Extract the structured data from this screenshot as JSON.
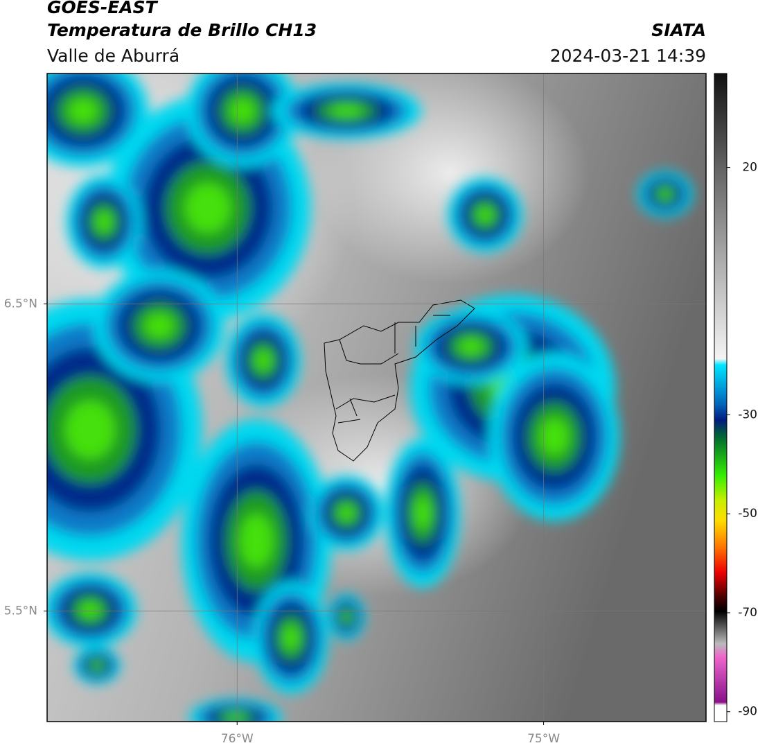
{
  "header": {
    "satellite": "GOES-EAST",
    "product": "Temperatura de Brillo CH13",
    "region": "Valle de Aburrá",
    "agency": "SIATA",
    "datetime": "2024-03-21 14:39"
  },
  "map": {
    "xlim": [
      -76.62,
      -74.47
    ],
    "ylim": [
      5.14,
      7.25
    ],
    "xticks": [
      {
        "value": -76,
        "label": "76°W"
      },
      {
        "value": -75,
        "label": "75°W"
      }
    ],
    "yticks": [
      {
        "value": 6.5,
        "label": "6.5°N"
      },
      {
        "value": 5.5,
        "label": "5.5°N"
      }
    ],
    "grid": true
  },
  "colorbar": {
    "lim": [
      -92,
      39
    ],
    "ticks": [
      20,
      -30,
      -50,
      -70,
      -90
    ]
  }
}
